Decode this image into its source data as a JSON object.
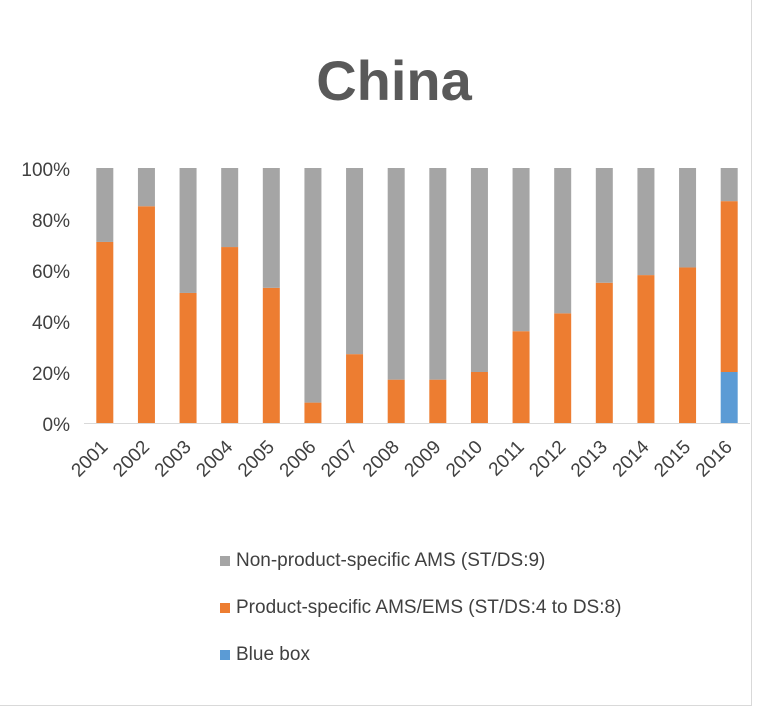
{
  "chart_data": {
    "type": "bar",
    "stacked": true,
    "normalized": true,
    "title": "China",
    "xlabel": "",
    "ylabel": "",
    "ylim": [
      0,
      100
    ],
    "y_ticks": [
      "0%",
      "20%",
      "40%",
      "60%",
      "80%",
      "100%"
    ],
    "grid": false,
    "legend_position": "bottom",
    "categories": [
      "2001",
      "2002",
      "2003",
      "2004",
      "2005",
      "2006",
      "2007",
      "2008",
      "2009",
      "2010",
      "2011",
      "2012",
      "2013",
      "2014",
      "2015",
      "2016"
    ],
    "series": [
      {
        "name": "Blue box",
        "color": "#5B9BD5",
        "values": [
          0,
          0,
          0,
          0,
          0,
          0,
          0,
          0,
          0,
          0,
          0,
          0,
          0,
          0,
          0,
          20
        ]
      },
      {
        "name": "Product-specific AMS/EMS (ST/DS:4 to DS:8)",
        "color": "#ED7D31",
        "values": [
          71,
          85,
          51,
          69,
          53,
          8,
          27,
          17,
          17,
          20,
          36,
          43,
          55,
          58,
          61,
          67
        ]
      },
      {
        "name": "Non-product-specific AMS (ST/DS:9)",
        "color": "#A5A5A5",
        "values": [
          29,
          15,
          49,
          31,
          47,
          92,
          73,
          83,
          83,
          80,
          64,
          57,
          45,
          42,
          39,
          13
        ]
      }
    ],
    "legend": [
      {
        "label": "Non-product-specific AMS (ST/DS:9)",
        "color": "#A5A5A5"
      },
      {
        "label": "Product-specific AMS/EMS (ST/DS:4 to DS:8)",
        "color": "#ED7D31"
      },
      {
        "label": "Blue box",
        "color": "#5B9BD5"
      }
    ]
  }
}
